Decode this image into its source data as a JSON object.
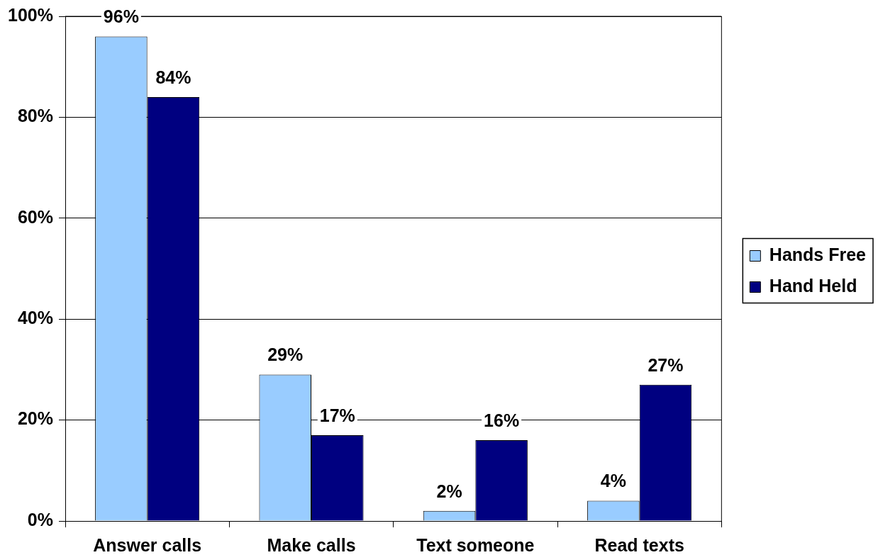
{
  "chart_data": {
    "type": "bar",
    "categories": [
      "Answer calls",
      "Make calls",
      "Text someone",
      "Read texts"
    ],
    "series": [
      {
        "name": "Hands Free",
        "color": "#99ccff",
        "values": [
          96,
          29,
          2,
          4
        ],
        "value_labels": [
          "96%",
          "29%",
          "2%",
          "4%"
        ]
      },
      {
        "name": "Hand Held",
        "color": "#000080",
        "values": [
          84,
          17,
          16,
          27
        ],
        "value_labels": [
          "84%",
          "17%",
          "16%",
          "27%"
        ]
      }
    ],
    "ylim": [
      0,
      100
    ],
    "yticks": [
      {
        "value": 0,
        "label": "0%"
      },
      {
        "value": 20,
        "label": "20%"
      },
      {
        "value": 40,
        "label": "40%"
      },
      {
        "value": 60,
        "label": "60%"
      },
      {
        "value": 80,
        "label": "80%"
      },
      {
        "value": 100,
        "label": "100%"
      }
    ],
    "grid": "y",
    "legend": "right"
  }
}
